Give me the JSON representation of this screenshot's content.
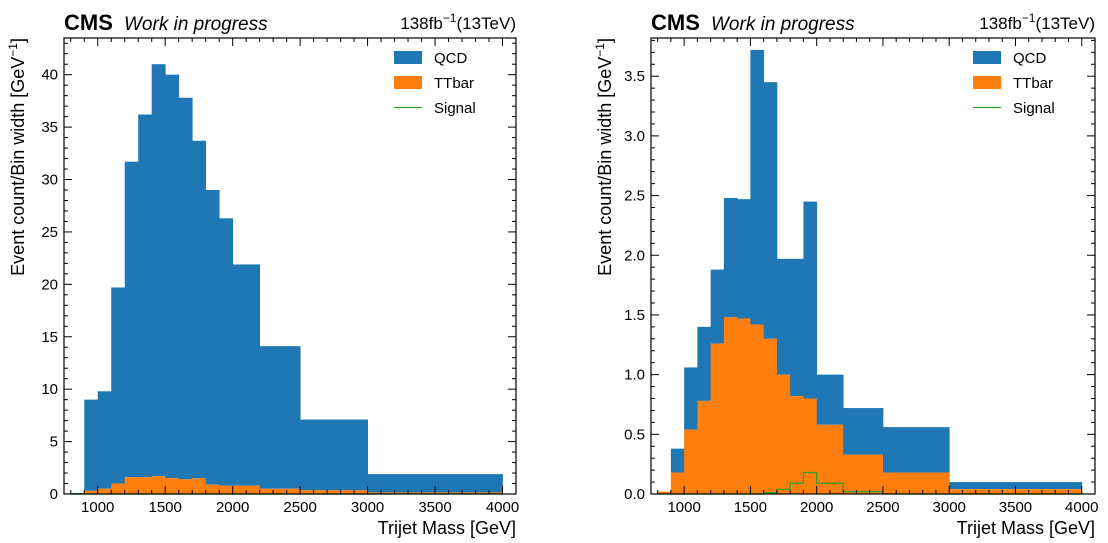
{
  "colors": {
    "qcd": "#1f77b4",
    "ttbar": "#ff7f0e",
    "signal": "#2ca02c"
  },
  "chart_data": [
    {
      "type": "histogram",
      "stacked": true,
      "experiment_label": "CMS",
      "status_label": "Work in progress",
      "lumi_text": "138fb",
      "lumi_exponent": "−1",
      "energy_text": "(13TeV)",
      "xlabel": "Trijet Mass [GeV]",
      "ylabel": "Event count/Bin width [GeV",
      "ylabel_exponent": "−1",
      "ylabel_close": "]",
      "xlim": [
        750,
        4100
      ],
      "ylim": [
        0,
        43.5
      ],
      "xticks": [
        "1000",
        "1500",
        "2000",
        "2500",
        "3000",
        "3500",
        "4000"
      ],
      "xtick_values": [
        1000,
        1500,
        2000,
        2500,
        3000,
        3500,
        4000
      ],
      "yticks": [
        "0",
        "5",
        "10",
        "15",
        "20",
        "25",
        "30",
        "35",
        "40"
      ],
      "ytick_values": [
        0,
        5,
        10,
        15,
        20,
        25,
        30,
        35,
        40
      ],
      "legend_position": "top-right",
      "legend": [
        {
          "name": "QCD",
          "style": "fill"
        },
        {
          "name": "TTbar",
          "style": "fill"
        },
        {
          "name": "Signal",
          "style": "line"
        }
      ],
      "bin_edges": [
        800,
        900,
        1000,
        1100,
        1200,
        1300,
        1400,
        1500,
        1600,
        1700,
        1800,
        1900,
        2000,
        2200,
        2500,
        3000,
        4000
      ],
      "series": [
        {
          "name": "QCD",
          "values": [
            0.05,
            8.7,
            9.3,
            18.7,
            30.1,
            34.6,
            39.3,
            38.5,
            36.4,
            32.2,
            28.1,
            25.5,
            21.1,
            13.6,
            6.75,
            1.75
          ]
        },
        {
          "name": "TTbar",
          "values": [
            0.05,
            0.3,
            0.5,
            1.0,
            1.6,
            1.6,
            1.7,
            1.5,
            1.4,
            1.5,
            0.9,
            0.8,
            0.8,
            0.5,
            0.35,
            0.15
          ]
        },
        {
          "name": "Signal",
          "values": [
            0,
            0,
            0,
            0,
            0,
            0,
            0,
            0,
            0,
            0,
            0,
            0,
            0,
            0,
            0,
            0
          ]
        }
      ]
    },
    {
      "type": "histogram",
      "stacked": true,
      "experiment_label": "CMS",
      "status_label": "Work in progress",
      "lumi_text": "138fb",
      "lumi_exponent": "−1",
      "energy_text": "(13TeV)",
      "xlabel": "Trijet Mass [GeV]",
      "ylabel": "Event count/Bin width [GeV",
      "ylabel_exponent": "−1",
      "ylabel_close": "]",
      "xlim": [
        750,
        4100
      ],
      "ylim": [
        0,
        3.82
      ],
      "xticks": [
        "1000",
        "1500",
        "2000",
        "2500",
        "3000",
        "3500",
        "4000"
      ],
      "xtick_values": [
        1000,
        1500,
        2000,
        2500,
        3000,
        3500,
        4000
      ],
      "yticks": [
        "0.0",
        "0.5",
        "1.0",
        "1.5",
        "2.0",
        "2.5",
        "3.0",
        "3.5"
      ],
      "ytick_values": [
        0,
        0.5,
        1.0,
        1.5,
        2.0,
        2.5,
        3.0,
        3.5
      ],
      "legend_position": "top-right",
      "legend": [
        {
          "name": "QCD",
          "style": "fill"
        },
        {
          "name": "TTbar",
          "style": "fill"
        },
        {
          "name": "Signal",
          "style": "line"
        }
      ],
      "bin_edges": [
        800,
        900,
        1000,
        1100,
        1200,
        1300,
        1400,
        1500,
        1600,
        1700,
        1800,
        1900,
        2000,
        2200,
        2500,
        3000,
        4000
      ],
      "series": [
        {
          "name": "QCD",
          "values": [
            0.0,
            0.2,
            0.52,
            0.62,
            0.62,
            1.0,
            1.0,
            2.3,
            2.15,
            0.97,
            1.15,
            1.65,
            0.42,
            0.39,
            0.38,
            0.06
          ]
        },
        {
          "name": "TTbar",
          "values": [
            0.02,
            0.18,
            0.54,
            0.78,
            1.26,
            1.48,
            1.47,
            1.42,
            1.3,
            1.0,
            0.82,
            0.8,
            0.58,
            0.33,
            0.18,
            0.04
          ]
        },
        {
          "name": "Signal",
          "values": [
            0,
            0,
            0,
            0,
            0,
            0,
            0,
            0,
            0.01,
            0.04,
            0.09,
            0.18,
            0.09,
            0.02,
            0,
            0
          ]
        }
      ]
    }
  ]
}
